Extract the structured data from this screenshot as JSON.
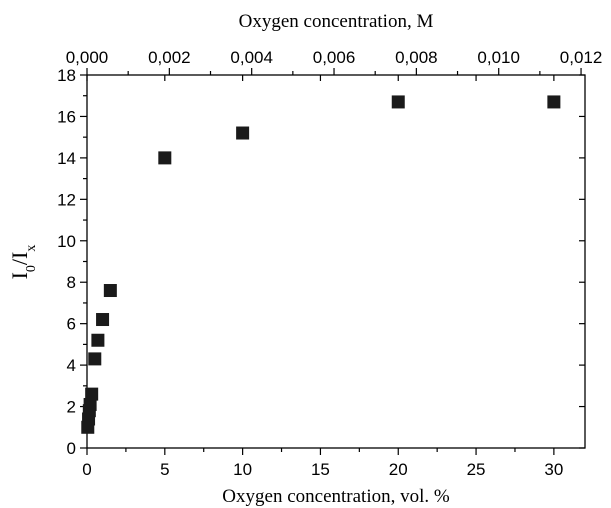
{
  "chart_data": {
    "type": "scatter",
    "xlabel": "Oxygen concentration, vol. %",
    "x2label": "Oxygen concentration, M",
    "ylabel_main": "I",
    "ylabel_sub0": "0",
    "ylabel_slash": "/I",
    "ylabel_subx": "x",
    "xlim": [
      0,
      32
    ],
    "ylim": [
      0,
      18
    ],
    "x_ticks": [
      "0",
      "5",
      "10",
      "15",
      "20",
      "25",
      "30"
    ],
    "x2_ticks": [
      "0,000",
      "0,002",
      "0,004",
      "0,006",
      "0,008",
      "0,010",
      "0,012"
    ],
    "y_ticks": [
      "0",
      "2",
      "4",
      "6",
      "8",
      "10",
      "12",
      "14",
      "16",
      "18"
    ],
    "x_tick_values": [
      0,
      5,
      10,
      15,
      20,
      25,
      30
    ],
    "x2_tick_values": [
      0,
      0.002,
      0.004,
      0.006,
      0.008,
      0.01,
      0.012
    ],
    "x2_per_x": 0.000378,
    "y_tick_values": [
      0,
      2,
      4,
      6,
      8,
      10,
      12,
      14,
      16,
      18
    ],
    "x": [
      0.05,
      0.1,
      0.15,
      0.2,
      0.3,
      0.5,
      0.7,
      1.0,
      1.5,
      5.0,
      10.0,
      20.0,
      30.0
    ],
    "y": [
      1.0,
      1.4,
      1.8,
      2.1,
      2.6,
      4.3,
      5.2,
      6.2,
      7.6,
      14.0,
      15.2,
      16.7,
      16.7
    ],
    "marker": "square",
    "marker_color": "#1a1a1a"
  }
}
